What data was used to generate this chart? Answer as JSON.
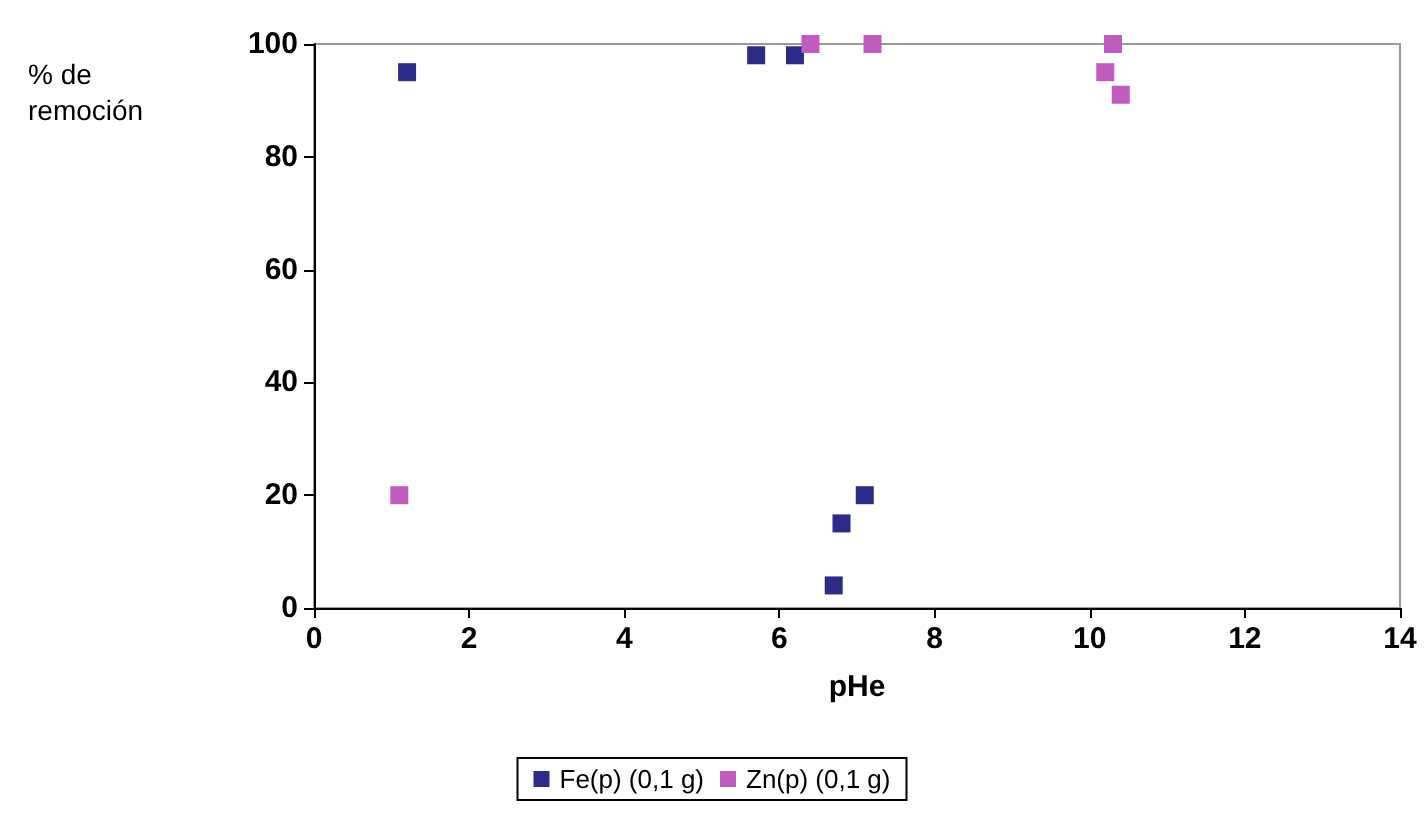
{
  "chart_data": {
    "type": "scatter",
    "xlabel": "pHe",
    "ylabel": "% de remoción",
    "xlim": [
      0,
      14
    ],
    "xticks": [
      0,
      2,
      4,
      6,
      8,
      10,
      12,
      14
    ],
    "ylim": [
      0,
      100
    ],
    "yticks": [
      0,
      20,
      40,
      60,
      80,
      100
    ],
    "grid": false,
    "legend": "bottom",
    "marker": "square",
    "series": [
      {
        "name": "Fe(p) (0,1 g)",
        "color": "#2b2b8a",
        "x": [
          1.2,
          5.7,
          6.2,
          6.7,
          6.8,
          7.1
        ],
        "values": [
          95,
          98,
          98,
          4,
          15,
          20
        ]
      },
      {
        "name": "Zn(p) (0,1 g)",
        "color": "#c25bbf",
        "x": [
          1.1,
          6.4,
          7.2,
          10.3,
          10.2,
          10.4
        ],
        "values": [
          20,
          100,
          100,
          100,
          95,
          91
        ]
      }
    ]
  }
}
